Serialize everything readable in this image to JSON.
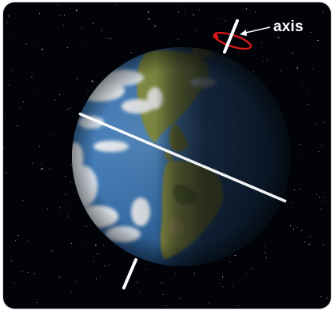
{
  "figure": {
    "axis_label": "axis",
    "colors": {
      "background": "#020308",
      "ocean": "#3d78b6",
      "land": "#9a9a4a",
      "night_shadow": "#03060c",
      "axis": "#ffffff",
      "rotation_arrow": "#e01919"
    }
  }
}
